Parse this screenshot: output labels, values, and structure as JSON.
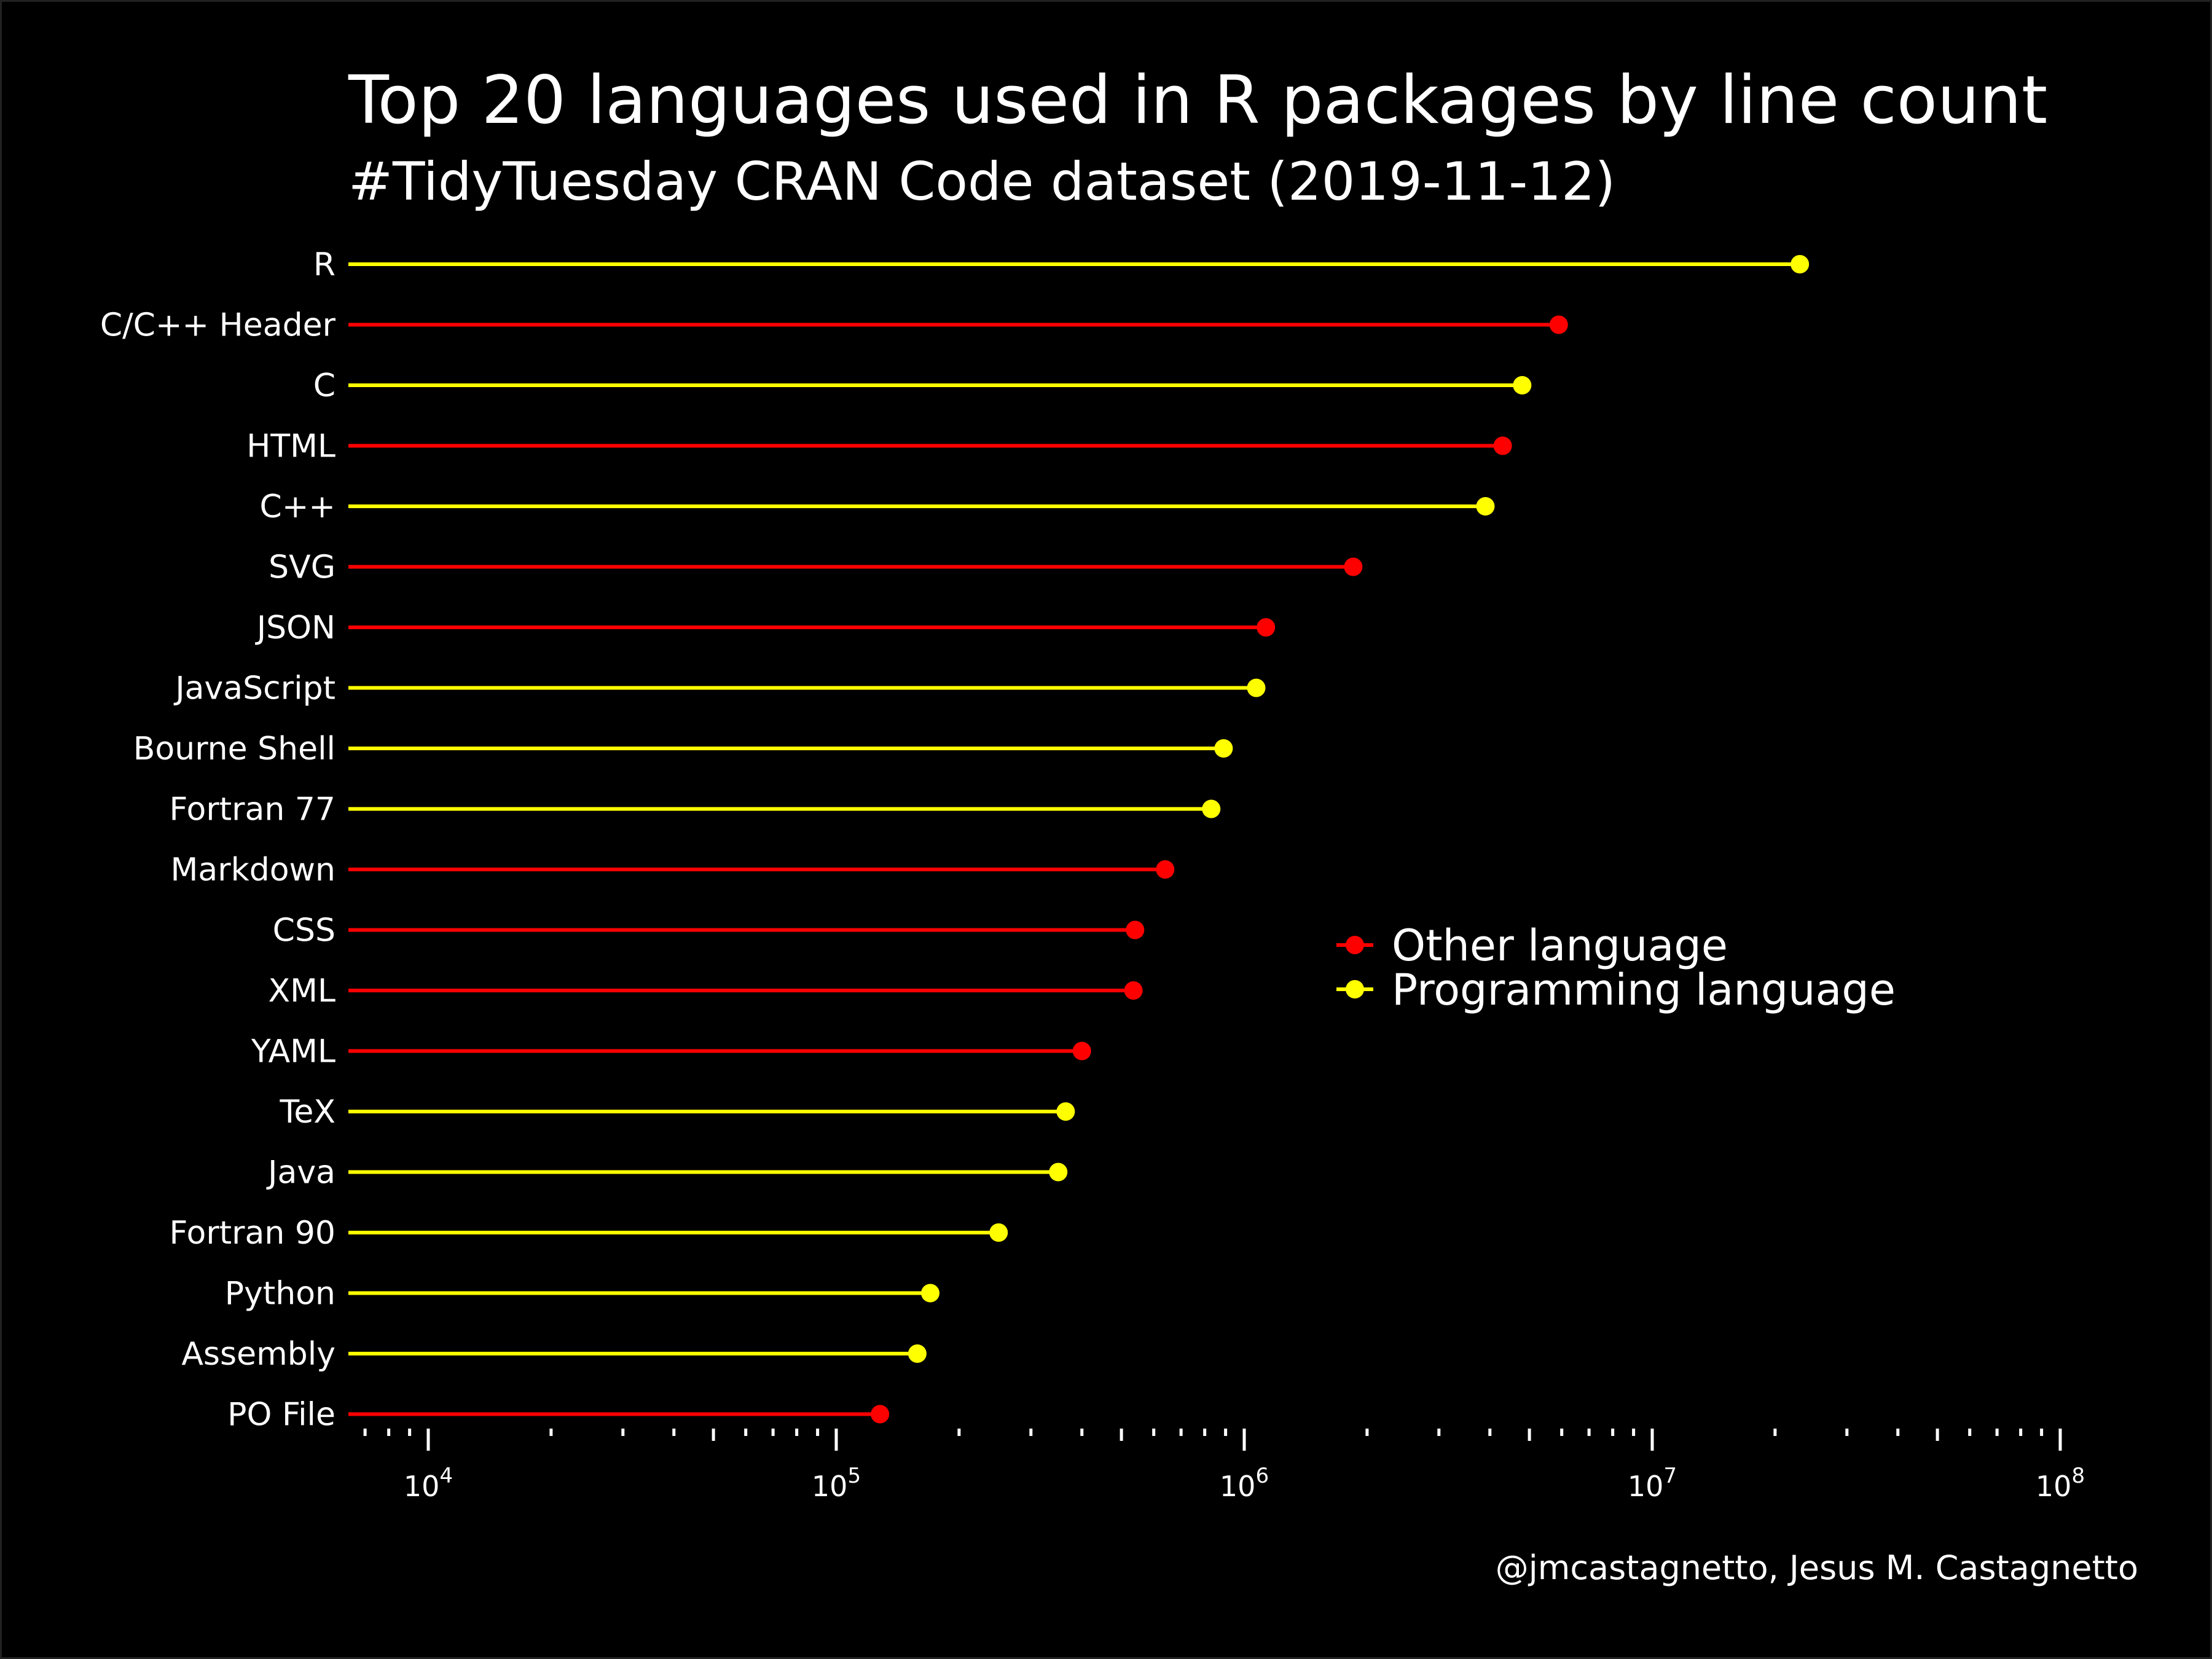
{
  "title": "Top 20 languages used in R packages by line count",
  "subtitle": "#TidyTuesday CRAN Code dataset (2019-11-12)",
  "caption": "@jmcastagnetto, Jesus M. Castagnetto",
  "colors": {
    "background": "#000000",
    "text": "#ffffff",
    "other": "#ff0000",
    "programming": "#ffff00"
  },
  "chart_data": {
    "type": "lollipop",
    "xscale": "log10",
    "xlim": [
      7000,
      100000000
    ],
    "xticks": [
      {
        "value": 10000,
        "base": "10",
        "exp": "4"
      },
      {
        "value": 100000,
        "base": "10",
        "exp": "5"
      },
      {
        "value": 1000000,
        "base": "10",
        "exp": "6"
      },
      {
        "value": 10000000,
        "base": "10",
        "exp": "7"
      },
      {
        "value": 100000000,
        "base": "10",
        "exp": "8"
      }
    ],
    "legend": {
      "position": "center-right",
      "entries": [
        {
          "key": "other",
          "label": "Other language"
        },
        {
          "key": "programming",
          "label": "Programming language"
        }
      ]
    },
    "points": [
      {
        "language": "R",
        "lines": 23000000,
        "type": "programming"
      },
      {
        "language": "C/C++ Header",
        "lines": 5900000,
        "type": "other"
      },
      {
        "language": "C",
        "lines": 4800000,
        "type": "programming"
      },
      {
        "language": "HTML",
        "lines": 4300000,
        "type": "other"
      },
      {
        "language": "C++",
        "lines": 3900000,
        "type": "programming"
      },
      {
        "language": "SVG",
        "lines": 1850000,
        "type": "other"
      },
      {
        "language": "JSON",
        "lines": 1130000,
        "type": "other"
      },
      {
        "language": "JavaScript",
        "lines": 1070000,
        "type": "programming"
      },
      {
        "language": "Bourne Shell",
        "lines": 890000,
        "type": "programming"
      },
      {
        "language": "Fortran 77",
        "lines": 830000,
        "type": "programming"
      },
      {
        "language": "Markdown",
        "lines": 640000,
        "type": "other"
      },
      {
        "language": "CSS",
        "lines": 540000,
        "type": "other"
      },
      {
        "language": "XML",
        "lines": 535000,
        "type": "other"
      },
      {
        "language": "YAML",
        "lines": 400000,
        "type": "other"
      },
      {
        "language": "TeX",
        "lines": 365000,
        "type": "programming"
      },
      {
        "language": "Java",
        "lines": 350000,
        "type": "programming"
      },
      {
        "language": "Fortran 90",
        "lines": 250000,
        "type": "programming"
      },
      {
        "language": "Python",
        "lines": 170000,
        "type": "programming"
      },
      {
        "language": "Assembly",
        "lines": 158000,
        "type": "programming"
      },
      {
        "language": "PO File",
        "lines": 128000,
        "type": "other"
      }
    ]
  }
}
